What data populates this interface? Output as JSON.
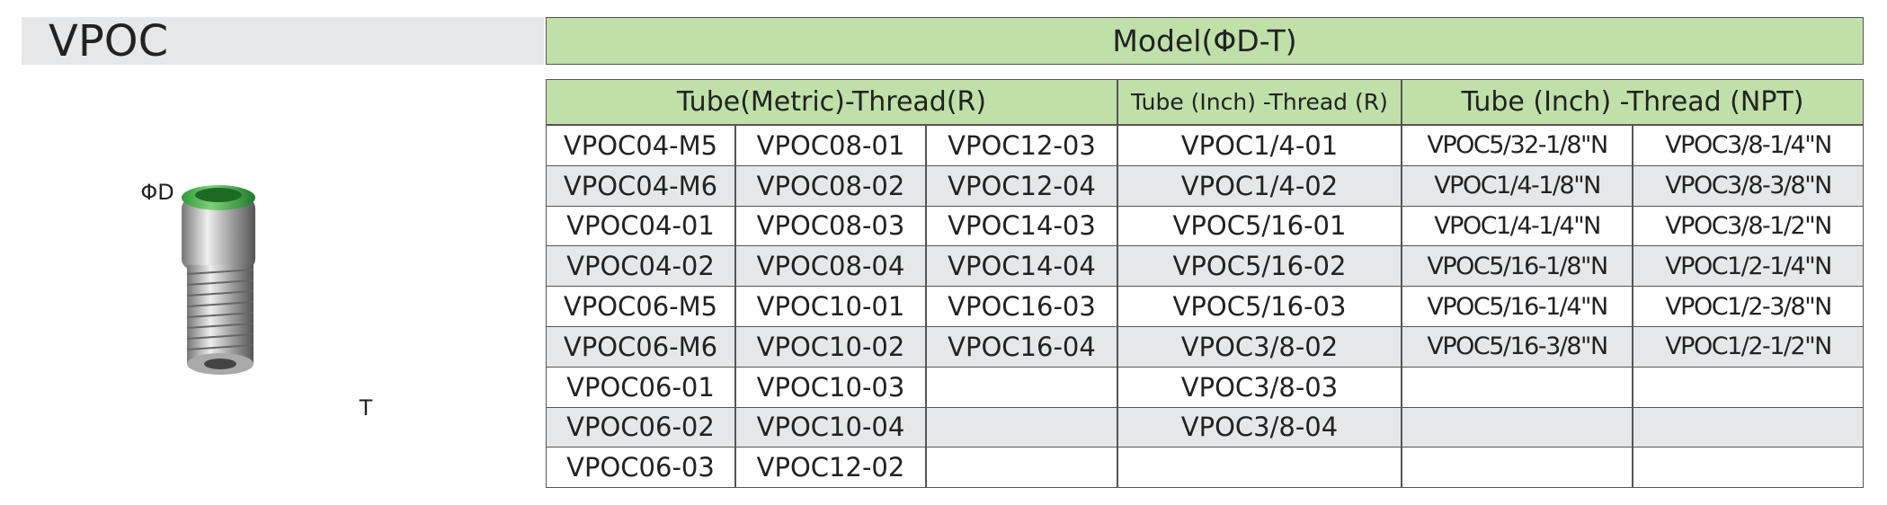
{
  "header": {
    "title": "VPOC"
  },
  "figure": {
    "labels": [
      "ΦD",
      "T"
    ]
  },
  "table": {
    "title": "Model(ΦD-T)",
    "groups": [
      {
        "title": "Tube(Metric)-Thread(R)",
        "columns": [
          [
            "VPOC04-M5",
            "VPOC04-M6",
            "VPOC04-01",
            "VPOC04-02",
            "VPOC06-M5",
            "VPOC06-M6",
            "VPOC06-01",
            "VPOC06-02",
            "VPOC06-03"
          ],
          [
            "VPOC08-01",
            "VPOC08-02",
            "VPOC08-03",
            "VPOC08-04",
            "VPOC10-01",
            "VPOC10-02",
            "VPOC10-03",
            "VPOC10-04",
            "VPOC12-02"
          ],
          [
            "VPOC12-03",
            "VPOC12-04",
            "VPOC14-03",
            "VPOC14-04",
            "VPOC16-03",
            "VPOC16-04"
          ]
        ]
      },
      {
        "title": "Tube (Inch) -Thread (R)",
        "columns": [
          [
            "VPOC1/4-01",
            "VPOC1/4-02",
            "VPOC5/16-01",
            "VPOC5/16-02",
            "VPOC5/16-03",
            "VPOC3/8-02",
            "VPOC3/8-03",
            "VPOC3/8-04"
          ]
        ]
      },
      {
        "title": "Tube (Inch) -Thread (NPT)",
        "columns": [
          [
            "VPOC5/32-1/8\"N",
            "VPOC1/4-1/8\"N",
            "VPOC1/4-1/4\"N",
            "VPOC5/16-1/8\"N",
            "VPOC5/16-1/4\"N",
            "VPOC5/16-3/8\"N"
          ],
          [
            "VPOC3/8-1/4\"N",
            "VPOC3/8-3/8\"N",
            "VPOC3/8-1/2\"N",
            "VPOC1/2-1/4\"N",
            "VPOC1/2-3/8\"N",
            "VPOC1/2-1/2\"N"
          ]
        ]
      }
    ]
  }
}
